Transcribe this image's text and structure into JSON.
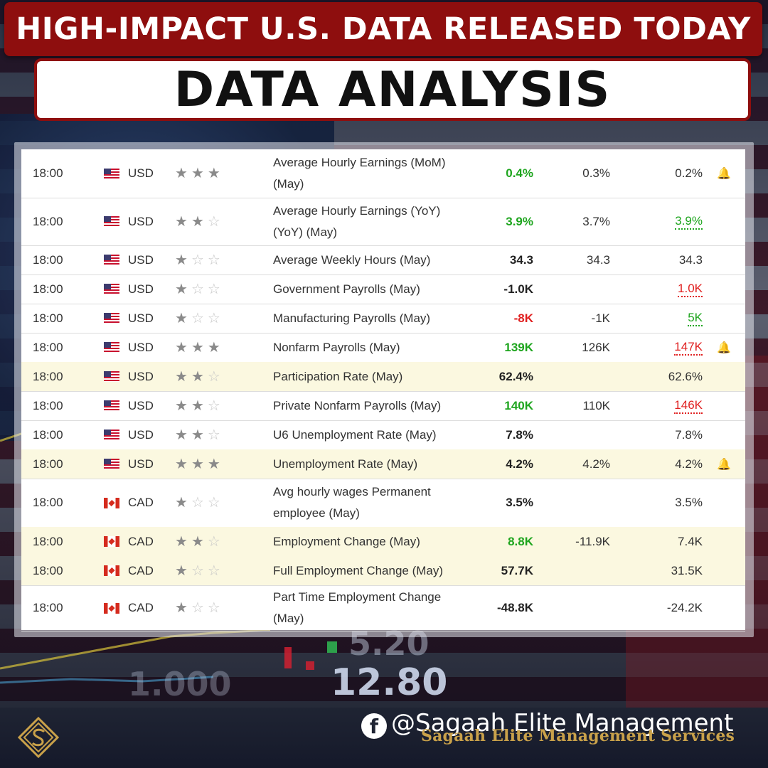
{
  "header": {
    "title": "HIGH-IMPACT U.S. DATA RELEASED TODAY",
    "subtitle": "DATA ANALYSIS"
  },
  "background": {
    "numbers": [
      "5.20",
      "12.80",
      "1.000"
    ]
  },
  "rows": [
    {
      "time": "18:00",
      "flag": "us",
      "currency": "USD",
      "stars": 3,
      "event": "Average Hourly Earnings (MoM) (May)",
      "actual": "0.4%",
      "actual_color": "pos",
      "forecast": "0.3%",
      "previous": "0.2%",
      "prev_style": "",
      "bell": true,
      "highlight": false,
      "height": 68
    },
    {
      "time": "18:00",
      "flag": "us",
      "currency": "USD",
      "stars": 2,
      "event": "Average Hourly Earnings (YoY) (YoY) (May)",
      "actual": "3.9%",
      "actual_color": "pos",
      "forecast": "3.7%",
      "previous": "3.9%",
      "prev_style": "u-pos",
      "bell": false,
      "highlight": false,
      "height": 67
    },
    {
      "time": "18:00",
      "flag": "us",
      "currency": "USD",
      "stars": 1,
      "event": "Average Weekly Hours (May)",
      "actual": "34.3",
      "actual_color": "",
      "forecast": "34.3",
      "previous": "34.3",
      "prev_style": "",
      "bell": false,
      "highlight": false,
      "height": 41
    },
    {
      "time": "18:00",
      "flag": "us",
      "currency": "USD",
      "stars": 1,
      "event": "Government Payrolls (May)",
      "actual": "-1.0K",
      "actual_color": "",
      "forecast": "",
      "previous": "1.0K",
      "prev_style": "u-neg",
      "bell": false,
      "highlight": false,
      "height": 41
    },
    {
      "time": "18:00",
      "flag": "us",
      "currency": "USD",
      "stars": 1,
      "event": "Manufacturing Payrolls (May)",
      "actual": "-8K",
      "actual_color": "neg",
      "forecast": "-1K",
      "previous": "5K",
      "prev_style": "u-pos",
      "bell": false,
      "highlight": false,
      "height": 41
    },
    {
      "time": "18:00",
      "flag": "us",
      "currency": "USD",
      "stars": 3,
      "event": "Nonfarm Payrolls (May)",
      "actual": "139K",
      "actual_color": "pos",
      "forecast": "126K",
      "previous": "147K",
      "prev_style": "u-neg",
      "bell": true,
      "highlight": false,
      "height": 41
    },
    {
      "time": "18:00",
      "flag": "us",
      "currency": "USD",
      "stars": 2,
      "event": "Participation Rate (May)",
      "actual": "62.4%",
      "actual_color": "",
      "forecast": "",
      "previous": "62.6%",
      "prev_style": "",
      "bell": false,
      "highlight": true,
      "height": 41
    },
    {
      "time": "18:00",
      "flag": "us",
      "currency": "USD",
      "stars": 2,
      "event": "Private Nonfarm Payrolls (May)",
      "actual": "140K",
      "actual_color": "pos",
      "forecast": "110K",
      "previous": "146K",
      "prev_style": "u-neg",
      "bell": false,
      "highlight": false,
      "height": 41
    },
    {
      "time": "18:00",
      "flag": "us",
      "currency": "USD",
      "stars": 2,
      "event": "U6 Unemployment Rate (May)",
      "actual": "7.8%",
      "actual_color": "",
      "forecast": "",
      "previous": "7.8%",
      "prev_style": "",
      "bell": false,
      "highlight": false,
      "height": 41
    },
    {
      "time": "18:00",
      "flag": "us",
      "currency": "USD",
      "stars": 3,
      "event": "Unemployment Rate (May)",
      "actual": "4.2%",
      "actual_color": "",
      "forecast": "4.2%",
      "previous": "4.2%",
      "prev_style": "",
      "bell": true,
      "highlight": true,
      "height": 41
    },
    {
      "time": "18:00",
      "flag": "ca",
      "currency": "CAD",
      "stars": 1,
      "event": "Avg hourly wages Permanent employee (May)",
      "actual": "3.5%",
      "actual_color": "",
      "forecast": "",
      "previous": "3.5%",
      "prev_style": "",
      "bell": false,
      "highlight": false,
      "height": 68
    },
    {
      "time": "18:00",
      "flag": "ca",
      "currency": "CAD",
      "stars": 2,
      "event": "Employment Change (May)",
      "actual": "8.8K",
      "actual_color": "pos",
      "forecast": "-11.9K",
      "previous": "7.4K",
      "prev_style": "",
      "bell": false,
      "highlight": true,
      "height": 41
    },
    {
      "time": "18:00",
      "flag": "ca",
      "currency": "CAD",
      "stars": 1,
      "event": "Full Employment Change (May)",
      "actual": "57.7K",
      "actual_color": "",
      "forecast": "",
      "previous": "31.5K",
      "prev_style": "",
      "bell": false,
      "highlight": true,
      "height": 41
    },
    {
      "time": "18:00",
      "flag": "ca",
      "currency": "CAD",
      "stars": 1,
      "event": "Part Time Employment Change (May)",
      "actual": "-48.8K",
      "actual_color": "",
      "forecast": "",
      "previous": "-24.2K",
      "prev_style": "",
      "bell": false,
      "highlight": false,
      "height": 64
    }
  ],
  "footer": {
    "facebook_icon": "f",
    "handle": "@Sagaah Elite Management",
    "company": "Sagaah Elite Management Services"
  }
}
